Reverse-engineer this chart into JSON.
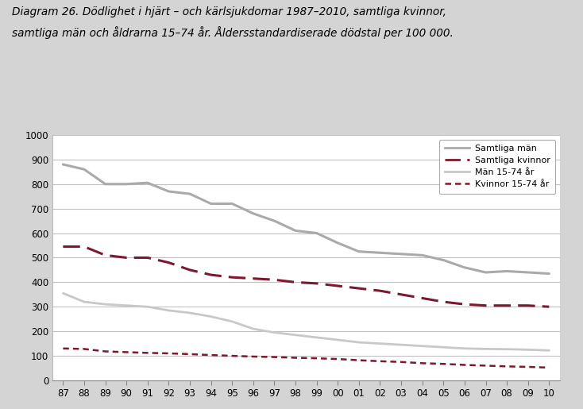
{
  "title_line1": "Diagram 26. Dödlighet i hjärt – och kärlsjukdomar 1987–2010, samtliga kvinnor,",
  "title_line2": "samtliga män och åldrarna 15–74 år. Åldersstandardiserade dödstal per 100 000.",
  "years_labels": [
    "87",
    "88",
    "89",
    "90",
    "91",
    "92",
    "93",
    "94",
    "95",
    "96",
    "97",
    "98",
    "99",
    "00",
    "01",
    "02",
    "03",
    "04",
    "05",
    "06",
    "07",
    "08",
    "09",
    "10"
  ],
  "samtliga_man": [
    880,
    860,
    800,
    800,
    805,
    770,
    760,
    720,
    720,
    680,
    650,
    610,
    600,
    560,
    525,
    520,
    515,
    510,
    490,
    460,
    440,
    445,
    440,
    435
  ],
  "samtliga_kvinnor": [
    545,
    545,
    510,
    500,
    500,
    480,
    450,
    430,
    420,
    415,
    410,
    400,
    395,
    385,
    375,
    365,
    350,
    335,
    320,
    310,
    305,
    305,
    305,
    300
  ],
  "man_1574": [
    355,
    320,
    310,
    305,
    300,
    285,
    275,
    260,
    240,
    210,
    195,
    185,
    175,
    165,
    155,
    150,
    145,
    140,
    135,
    130,
    128,
    127,
    125,
    122
  ],
  "kvinnor_1574": [
    130,
    128,
    118,
    115,
    112,
    110,
    107,
    103,
    100,
    97,
    95,
    92,
    90,
    87,
    82,
    78,
    75,
    70,
    67,
    63,
    60,
    57,
    55,
    52
  ],
  "color_man": "#aaaaaa",
  "color_kvinna": "#7b1a2e",
  "color_man_light": "#c8c8c8",
  "fig_bg": "#d4d4d4",
  "plot_bg": "#ffffff",
  "grid_color": "#c0c0c0",
  "ylim": [
    0,
    1000
  ],
  "yticks": [
    0,
    100,
    200,
    300,
    400,
    500,
    600,
    700,
    800,
    900,
    1000
  ]
}
